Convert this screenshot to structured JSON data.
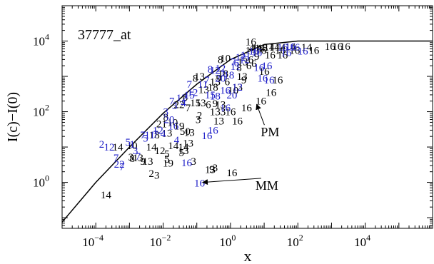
{
  "chart_data": {
    "type": "scatter",
    "title": "37777_at",
    "xlabel": "x",
    "ylabel": "I(c)−I(0)",
    "x_scale": "log",
    "y_scale": "log",
    "xlim": [
      1e-05,
      1000000
    ],
    "ylim": [
      0.05,
      100000
    ],
    "x_ticks": [
      {
        "value": 0.0001,
        "base": "10",
        "exp": "−4"
      },
      {
        "value": 0.01,
        "base": "10",
        "exp": "−2"
      },
      {
        "value": 1,
        "base": "10",
        "exp": "0"
      },
      {
        "value": 100,
        "base": "10",
        "exp": "2"
      },
      {
        "value": 10000,
        "base": "10",
        "exp": "4"
      }
    ],
    "y_ticks": [
      {
        "value": 1,
        "base": "10",
        "exp": "0"
      },
      {
        "value": 100,
        "base": "10",
        "exp": "2"
      },
      {
        "value": 10000,
        "base": "10",
        "exp": "4"
      }
    ],
    "colors": {
      "pm": "#000000",
      "mm": "#1f1fc8",
      "curve": "#000000"
    },
    "curve": [
      {
        "x": 1e-05,
        "y": 0.075
      },
      {
        "x": 0.0001,
        "y": 1.0
      },
      {
        "x": 0.001,
        "y": 10
      },
      {
        "x": 0.01,
        "y": 90
      },
      {
        "x": 0.1,
        "y": 600
      },
      {
        "x": 1,
        "y": 3000
      },
      {
        "x": 10,
        "y": 8000
      },
      {
        "x": 100,
        "y": 10000
      },
      {
        "x": 1000000,
        "y": 10000
      }
    ],
    "annotations": [
      {
        "label": "PM",
        "text_x": 15,
        "text_y": 20,
        "arrow_to_x": 6,
        "arrow_to_y": 160
      },
      {
        "label": "MM",
        "text_x": 12,
        "text_y": 0.62,
        "arrow_to_x": 0.15,
        "arrow_to_y": 1.0
      }
    ],
    "series": [
      {
        "name": "PM",
        "color": "#000000",
        "points": [
          {
            "x": 0.0002,
            "y": 0.45,
            "label": "14"
          },
          {
            "x": 0.00045,
            "y": 10,
            "label": "14"
          },
          {
            "x": 0.0012,
            "y": 11,
            "label": "10"
          },
          {
            "x": 0.0018,
            "y": 5,
            "label": "13"
          },
          {
            "x": 0.0011,
            "y": 5.2,
            "label": "3"
          },
          {
            "x": 0.0012,
            "y": 4.8,
            "label": "8"
          },
          {
            "x": 0.0025,
            "y": 4,
            "label": "9"
          },
          {
            "x": 0.0035,
            "y": 4,
            "label": "13"
          },
          {
            "x": 0.0045,
            "y": 1.8,
            "label": "2"
          },
          {
            "x": 0.0065,
            "y": 1.6,
            "label": "3"
          },
          {
            "x": 0.0055,
            "y": 22,
            "label": "18"
          },
          {
            "x": 0.0045,
            "y": 10,
            "label": "14"
          },
          {
            "x": 0.008,
            "y": 8,
            "label": "12"
          },
          {
            "x": 0.013,
            "y": 6.5,
            "label": "5"
          },
          {
            "x": 0.013,
            "y": 4.5,
            "label": "5"
          },
          {
            "x": 0.014,
            "y": 3.5,
            "label": "19"
          },
          {
            "x": 0.009,
            "y": 45,
            "label": "21"
          },
          {
            "x": 0.013,
            "y": 25,
            "label": "13"
          },
          {
            "x": 0.02,
            "y": 11,
            "label": "14"
          },
          {
            "x": 0.035,
            "y": 7,
            "label": "5"
          },
          {
            "x": 0.04,
            "y": 10,
            "label": "14"
          },
          {
            "x": 0.04,
            "y": 8,
            "label": "13"
          },
          {
            "x": 0.055,
            "y": 13,
            "label": "13"
          },
          {
            "x": 0.08,
            "y": 4,
            "label": "3"
          },
          {
            "x": 0.012,
            "y": 70,
            "label": "8"
          },
          {
            "x": 0.019,
            "y": 50,
            "label": "10"
          },
          {
            "x": 0.03,
            "y": 40,
            "label": "19"
          },
          {
            "x": 0.045,
            "y": 28,
            "label": "50"
          },
          {
            "x": 0.06,
            "y": 26,
            "label": "13"
          },
          {
            "x": 0.03,
            "y": 160,
            "label": "22"
          },
          {
            "x": 0.045,
            "y": 260,
            "label": "8"
          },
          {
            "x": 0.055,
            "y": 130,
            "label": "7"
          },
          {
            "x": 0.09,
            "y": 180,
            "label": "15"
          },
          {
            "x": 0.12,
            "y": 80,
            "label": "2"
          },
          {
            "x": 0.11,
            "y": 60,
            "label": "3"
          },
          {
            "x": 0.13,
            "y": 180,
            "label": "13"
          },
          {
            "x": 0.22,
            "y": 160,
            "label": "6"
          },
          {
            "x": 0.35,
            "y": 170,
            "label": "9"
          },
          {
            "x": 0.5,
            "y": 160,
            "label": "13"
          },
          {
            "x": 0.6,
            "y": 100,
            "label": "3"
          },
          {
            "x": 0.35,
            "y": 100,
            "label": "13"
          },
          {
            "x": 0.45,
            "y": 55,
            "label": "13"
          },
          {
            "x": 0.35,
            "y": 2.6,
            "label": "3"
          },
          {
            "x": 0.28,
            "y": 2.4,
            "label": "9"
          },
          {
            "x": 0.25,
            "y": 2.3,
            "label": "13"
          },
          {
            "x": 1.1,
            "y": 1.9,
            "label": "16"
          },
          {
            "x": 1.6,
            "y": 55,
            "label": "16"
          },
          {
            "x": 0.09,
            "y": 900,
            "label": "8"
          },
          {
            "x": 0.12,
            "y": 1000,
            "label": "13"
          },
          {
            "x": 0.16,
            "y": 420,
            "label": "13"
          },
          {
            "x": 0.3,
            "y": 500,
            "label": "18"
          },
          {
            "x": 0.35,
            "y": 700,
            "label": "13"
          },
          {
            "x": 0.45,
            "y": 900,
            "label": "9"
          },
          {
            "x": 0.6,
            "y": 1200,
            "label": "18"
          },
          {
            "x": 0.8,
            "y": 700,
            "label": "6"
          },
          {
            "x": 1.2,
            "y": 400,
            "label": "10"
          },
          {
            "x": 1.6,
            "y": 500,
            "label": "13"
          },
          {
            "x": 2.5,
            "y": 800,
            "label": "9"
          },
          {
            "x": 2.2,
            "y": 1000,
            "label": "13"
          },
          {
            "x": 1.8,
            "y": 1800,
            "label": "8"
          },
          {
            "x": 2.3,
            "y": 2600,
            "label": "13"
          },
          {
            "x": 0.5,
            "y": 3000,
            "label": "8"
          },
          {
            "x": 0.7,
            "y": 3300,
            "label": "10"
          },
          {
            "x": 3.5,
            "y": 2000,
            "label": "6"
          },
          {
            "x": 4,
            "y": 3000,
            "label": "6"
          },
          {
            "x": 5,
            "y": 2300,
            "label": "6"
          },
          {
            "x": 6,
            "y": 3700,
            "label": "9"
          },
          {
            "x": 3.3,
            "y": 5500,
            "label": "1"
          },
          {
            "x": 4.2,
            "y": 6500,
            "label": "4"
          },
          {
            "x": 5.3,
            "y": 6500,
            "label": "1"
          },
          {
            "x": 6,
            "y": 6000,
            "label": "13"
          },
          {
            "x": 7.5,
            "y": 6500,
            "label": "14"
          },
          {
            "x": 9,
            "y": 6500,
            "label": "13"
          },
          {
            "x": 14,
            "y": 6700,
            "label": "14"
          },
          {
            "x": 20,
            "y": 6700,
            "label": "14"
          },
          {
            "x": 30,
            "y": 6700,
            "label": "14"
          },
          {
            "x": 60,
            "y": 6700,
            "label": "14"
          },
          {
            "x": 180,
            "y": 6700,
            "label": "14"
          },
          {
            "x": 4,
            "y": 9500,
            "label": "16"
          },
          {
            "x": 8,
            "y": 5500,
            "label": "16"
          },
          {
            "x": 30,
            "y": 5500,
            "label": "16"
          },
          {
            "x": 15,
            "y": 4000,
            "label": "16"
          },
          {
            "x": 35,
            "y": 4000,
            "label": "16"
          },
          {
            "x": 80,
            "y": 5500,
            "label": "16"
          },
          {
            "x": 300,
            "y": 5500,
            "label": "16"
          },
          {
            "x": 900,
            "y": 7000,
            "label": "16"
          },
          {
            "x": 1500,
            "y": 7000,
            "label": "16"
          },
          {
            "x": 2500,
            "y": 7000,
            "label": "16"
          },
          {
            "x": 10,
            "y": 1400,
            "label": "16"
          },
          {
            "x": 25,
            "y": 800,
            "label": "16"
          },
          {
            "x": 16,
            "y": 350,
            "label": "16"
          },
          {
            "x": 8,
            "y": 200,
            "label": "16"
          },
          {
            "x": 3,
            "y": 130,
            "label": "16"
          },
          {
            "x": 1,
            "y": 100,
            "label": "16"
          }
        ]
      },
      {
        "name": "MM",
        "color": "#1f1fc8",
        "points": [
          {
            "x": 0.00015,
            "y": 12,
            "label": "2"
          },
          {
            "x": 0.00025,
            "y": 10,
            "label": "12"
          },
          {
            "x": 0.0004,
            "y": 5,
            "label": "7"
          },
          {
            "x": 0.0005,
            "y": 3.3,
            "label": "22"
          },
          {
            "x": 0.0006,
            "y": 2.8,
            "label": "7"
          },
          {
            "x": 0.0009,
            "y": 14,
            "label": "5"
          },
          {
            "x": 0.0012,
            "y": 12,
            "label": "1"
          },
          {
            "x": 0.0015,
            "y": 8,
            "label": "3"
          },
          {
            "x": 0.0018,
            "y": 5.5,
            "label": "7"
          },
          {
            "x": 0.0025,
            "y": 22,
            "label": "7"
          },
          {
            "x": 0.003,
            "y": 18,
            "label": "5"
          },
          {
            "x": 0.004,
            "y": 22,
            "label": "11"
          },
          {
            "x": 0.006,
            "y": 23,
            "label": "7"
          },
          {
            "x": 0.007,
            "y": 30,
            "label": "12"
          },
          {
            "x": 0.01,
            "y": 24,
            "label": "4"
          },
          {
            "x": 0.015,
            "y": 60,
            "label": "20"
          },
          {
            "x": 0.02,
            "y": 40,
            "label": "16"
          },
          {
            "x": 0.025,
            "y": 16,
            "label": "4"
          },
          {
            "x": 0.012,
            "y": 100,
            "label": "3"
          },
          {
            "x": 0.018,
            "y": 200,
            "label": "7"
          },
          {
            "x": 0.022,
            "y": 150,
            "label": "3"
          },
          {
            "x": 0.035,
            "y": 250,
            "label": "12"
          },
          {
            "x": 0.04,
            "y": 180,
            "label": "4"
          },
          {
            "x": 0.06,
            "y": 300,
            "label": "15"
          },
          {
            "x": 0.075,
            "y": 350,
            "label": "12"
          },
          {
            "x": 0.05,
            "y": 3.6,
            "label": "16"
          },
          {
            "x": 0.12,
            "y": 0.95,
            "label": "16"
          },
          {
            "x": 0.2,
            "y": 21,
            "label": "16"
          },
          {
            "x": 0.3,
            "y": 30,
            "label": "16"
          },
          {
            "x": 0.7,
            "y": 130,
            "label": "16"
          },
          {
            "x": 0.35,
            "y": 280,
            "label": "18"
          },
          {
            "x": 0.5,
            "y": 900,
            "label": "20"
          },
          {
            "x": 0.9,
            "y": 1100,
            "label": "18"
          },
          {
            "x": 1.4,
            "y": 1900,
            "label": "11"
          },
          {
            "x": 1.2,
            "y": 2600,
            "label": "7"
          },
          {
            "x": 1.5,
            "y": 2400,
            "label": "6"
          },
          {
            "x": 0.25,
            "y": 1600,
            "label": "8"
          },
          {
            "x": 0.35,
            "y": 1500,
            "label": "12"
          },
          {
            "x": 0.5,
            "y": 1700,
            "label": "12"
          },
          {
            "x": 0.6,
            "y": 1300,
            "label": "1"
          },
          {
            "x": 2,
            "y": 3500,
            "label": "12"
          },
          {
            "x": 2.6,
            "y": 3000,
            "label": "12"
          },
          {
            "x": 2.8,
            "y": 4000,
            "label": "11"
          },
          {
            "x": 5,
            "y": 5200,
            "label": "16"
          },
          {
            "x": 6,
            "y": 4800,
            "label": "16"
          },
          {
            "x": 7,
            "y": 1800,
            "label": "16"
          },
          {
            "x": 12,
            "y": 2000,
            "label": "16"
          },
          {
            "x": 9,
            "y": 900,
            "label": "16"
          },
          {
            "x": 14,
            "y": 800,
            "label": "16"
          },
          {
            "x": 35,
            "y": 6700,
            "label": "16"
          },
          {
            "x": 80,
            "y": 6700,
            "label": "16"
          },
          {
            "x": 60,
            "y": 7000,
            "label": "16"
          },
          {
            "x": 45,
            "y": 4800,
            "label": "16"
          },
          {
            "x": 140,
            "y": 5200,
            "label": "16"
          },
          {
            "x": 0.06,
            "y": 600,
            "label": "7"
          },
          {
            "x": 0.15,
            "y": 600,
            "label": "11"
          },
          {
            "x": 0.2,
            "y": 800,
            "label": "7"
          },
          {
            "x": 0.25,
            "y": 300,
            "label": "15"
          },
          {
            "x": 0.7,
            "y": 400,
            "label": "16"
          },
          {
            "x": 1.1,
            "y": 300,
            "label": "20"
          },
          {
            "x": 1.6,
            "y": 500,
            "label": "12"
          }
        ]
      }
    ]
  }
}
